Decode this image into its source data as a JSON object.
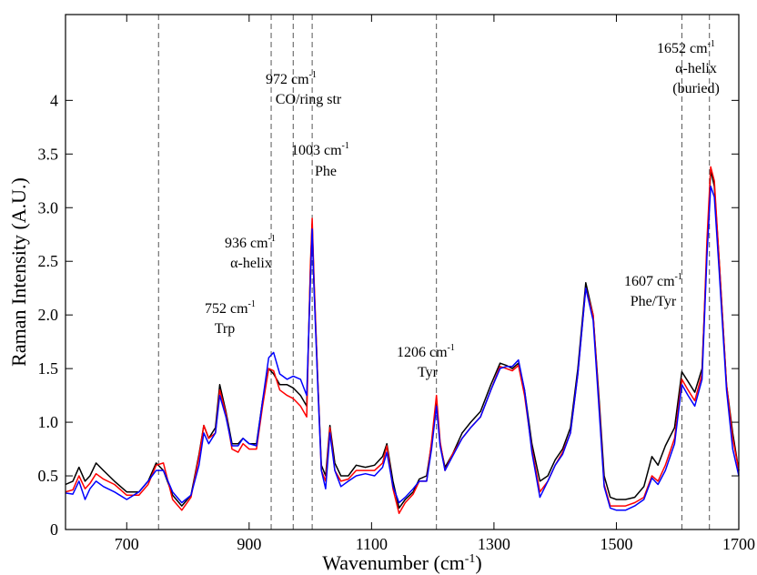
{
  "chart_data": {
    "type": "line",
    "title": "",
    "xlabel": "Wavenumber (cm-1)",
    "ylabel": "Raman Intensity (A.U.)",
    "xlim": [
      600,
      1700
    ],
    "ylim": [
      0,
      4.8
    ],
    "grid": false,
    "x_ticks": [
      "700",
      "900",
      "1100",
      "1300",
      "1500",
      "1700"
    ],
    "y_ticks": [
      "0",
      "0.5",
      "1.0",
      "1.5",
      "2.0",
      "2.5",
      "3.0",
      "3.5",
      "4"
    ],
    "series": [
      {
        "color": "#000000",
        "points": [
          [
            600,
            0.42
          ],
          [
            612,
            0.45
          ],
          [
            622,
            0.58
          ],
          [
            632,
            0.45
          ],
          [
            640,
            0.5
          ],
          [
            650,
            0.62
          ],
          [
            662,
            0.55
          ],
          [
            680,
            0.45
          ],
          [
            700,
            0.35
          ],
          [
            720,
            0.35
          ],
          [
            735,
            0.45
          ],
          [
            748,
            0.62
          ],
          [
            760,
            0.55
          ],
          [
            775,
            0.32
          ],
          [
            790,
            0.22
          ],
          [
            805,
            0.32
          ],
          [
            818,
            0.7
          ],
          [
            826,
            0.97
          ],
          [
            834,
            0.85
          ],
          [
            845,
            0.95
          ],
          [
            852,
            1.35
          ],
          [
            862,
            1.1
          ],
          [
            872,
            0.8
          ],
          [
            882,
            0.8
          ],
          [
            890,
            0.85
          ],
          [
            900,
            0.8
          ],
          [
            912,
            0.8
          ],
          [
            922,
            1.2
          ],
          [
            932,
            1.5
          ],
          [
            940,
            1.45
          ],
          [
            950,
            1.35
          ],
          [
            962,
            1.35
          ],
          [
            972,
            1.32
          ],
          [
            984,
            1.25
          ],
          [
            994,
            1.15
          ],
          [
            1000,
            2.4
          ],
          [
            1003,
            2.85
          ],
          [
            1006,
            2.3
          ],
          [
            1012,
            1.4
          ],
          [
            1018,
            0.6
          ],
          [
            1025,
            0.5
          ],
          [
            1032,
            0.97
          ],
          [
            1040,
            0.62
          ],
          [
            1050,
            0.5
          ],
          [
            1062,
            0.5
          ],
          [
            1075,
            0.6
          ],
          [
            1090,
            0.58
          ],
          [
            1105,
            0.6
          ],
          [
            1118,
            0.68
          ],
          [
            1125,
            0.8
          ],
          [
            1135,
            0.45
          ],
          [
            1145,
            0.2
          ],
          [
            1155,
            0.28
          ],
          [
            1168,
            0.35
          ],
          [
            1178,
            0.47
          ],
          [
            1190,
            0.5
          ],
          [
            1198,
            0.8
          ],
          [
            1206,
            1.2
          ],
          [
            1212,
            0.8
          ],
          [
            1220,
            0.58
          ],
          [
            1232,
            0.7
          ],
          [
            1248,
            0.9
          ],
          [
            1262,
            1.0
          ],
          [
            1278,
            1.1
          ],
          [
            1295,
            1.35
          ],
          [
            1310,
            1.55
          ],
          [
            1320,
            1.53
          ],
          [
            1330,
            1.5
          ],
          [
            1340,
            1.55
          ],
          [
            1350,
            1.3
          ],
          [
            1362,
            0.8
          ],
          [
            1375,
            0.45
          ],
          [
            1388,
            0.5
          ],
          [
            1400,
            0.65
          ],
          [
            1412,
            0.75
          ],
          [
            1425,
            0.95
          ],
          [
            1437,
            1.5
          ],
          [
            1450,
            2.3
          ],
          [
            1462,
            2.0
          ],
          [
            1472,
            1.2
          ],
          [
            1480,
            0.5
          ],
          [
            1490,
            0.3
          ],
          [
            1500,
            0.28
          ],
          [
            1515,
            0.28
          ],
          [
            1530,
            0.3
          ],
          [
            1545,
            0.4
          ],
          [
            1558,
            0.68
          ],
          [
            1568,
            0.6
          ],
          [
            1580,
            0.78
          ],
          [
            1595,
            0.95
          ],
          [
            1607,
            1.47
          ],
          [
            1617,
            1.38
          ],
          [
            1628,
            1.28
          ],
          [
            1640,
            1.5
          ],
          [
            1648,
            2.6
          ],
          [
            1654,
            3.35
          ],
          [
            1660,
            3.2
          ],
          [
            1668,
            2.5
          ],
          [
            1680,
            1.35
          ],
          [
            1690,
            0.9
          ],
          [
            1700,
            0.55
          ]
        ]
      },
      {
        "color": "#ff0000",
        "points": [
          [
            600,
            0.35
          ],
          [
            612,
            0.37
          ],
          [
            622,
            0.5
          ],
          [
            632,
            0.38
          ],
          [
            640,
            0.43
          ],
          [
            650,
            0.52
          ],
          [
            662,
            0.47
          ],
          [
            680,
            0.42
          ],
          [
            700,
            0.32
          ],
          [
            720,
            0.32
          ],
          [
            735,
            0.42
          ],
          [
            748,
            0.6
          ],
          [
            760,
            0.62
          ],
          [
            775,
            0.28
          ],
          [
            790,
            0.18
          ],
          [
            805,
            0.3
          ],
          [
            818,
            0.68
          ],
          [
            826,
            0.97
          ],
          [
            834,
            0.85
          ],
          [
            845,
            0.9
          ],
          [
            852,
            1.3
          ],
          [
            862,
            1.08
          ],
          [
            872,
            0.75
          ],
          [
            882,
            0.72
          ],
          [
            890,
            0.8
          ],
          [
            900,
            0.75
          ],
          [
            912,
            0.75
          ],
          [
            922,
            1.15
          ],
          [
            932,
            1.5
          ],
          [
            940,
            1.48
          ],
          [
            950,
            1.3
          ],
          [
            962,
            1.25
          ],
          [
            972,
            1.22
          ],
          [
            984,
            1.15
          ],
          [
            994,
            1.05
          ],
          [
            1000,
            2.45
          ],
          [
            1003,
            2.9
          ],
          [
            1006,
            2.35
          ],
          [
            1012,
            1.4
          ],
          [
            1018,
            0.55
          ],
          [
            1025,
            0.45
          ],
          [
            1032,
            0.95
          ],
          [
            1040,
            0.55
          ],
          [
            1050,
            0.45
          ],
          [
            1062,
            0.47
          ],
          [
            1075,
            0.55
          ],
          [
            1090,
            0.55
          ],
          [
            1105,
            0.55
          ],
          [
            1118,
            0.62
          ],
          [
            1125,
            0.78
          ],
          [
            1135,
            0.38
          ],
          [
            1145,
            0.15
          ],
          [
            1155,
            0.25
          ],
          [
            1168,
            0.33
          ],
          [
            1178,
            0.45
          ],
          [
            1190,
            0.45
          ],
          [
            1198,
            0.82
          ],
          [
            1206,
            1.25
          ],
          [
            1212,
            0.82
          ],
          [
            1220,
            0.55
          ],
          [
            1232,
            0.7
          ],
          [
            1248,
            0.85
          ],
          [
            1262,
            0.95
          ],
          [
            1278,
            1.05
          ],
          [
            1295,
            1.3
          ],
          [
            1310,
            1.52
          ],
          [
            1320,
            1.5
          ],
          [
            1330,
            1.48
          ],
          [
            1340,
            1.53
          ],
          [
            1350,
            1.25
          ],
          [
            1362,
            0.75
          ],
          [
            1375,
            0.35
          ],
          [
            1388,
            0.45
          ],
          [
            1400,
            0.6
          ],
          [
            1412,
            0.72
          ],
          [
            1425,
            0.9
          ],
          [
            1437,
            1.45
          ],
          [
            1450,
            2.25
          ],
          [
            1462,
            2.0
          ],
          [
            1472,
            1.15
          ],
          [
            1480,
            0.42
          ],
          [
            1490,
            0.22
          ],
          [
            1500,
            0.22
          ],
          [
            1515,
            0.22
          ],
          [
            1530,
            0.25
          ],
          [
            1545,
            0.3
          ],
          [
            1558,
            0.5
          ],
          [
            1568,
            0.45
          ],
          [
            1580,
            0.6
          ],
          [
            1595,
            0.85
          ],
          [
            1607,
            1.4
          ],
          [
            1617,
            1.3
          ],
          [
            1628,
            1.2
          ],
          [
            1640,
            1.45
          ],
          [
            1648,
            2.7
          ],
          [
            1654,
            3.38
          ],
          [
            1660,
            3.25
          ],
          [
            1668,
            2.5
          ],
          [
            1680,
            1.35
          ],
          [
            1690,
            0.85
          ],
          [
            1700,
            0.55
          ]
        ]
      },
      {
        "color": "#0000ff",
        "points": [
          [
            600,
            0.34
          ],
          [
            612,
            0.33
          ],
          [
            622,
            0.45
          ],
          [
            632,
            0.28
          ],
          [
            640,
            0.38
          ],
          [
            650,
            0.45
          ],
          [
            662,
            0.4
          ],
          [
            680,
            0.35
          ],
          [
            700,
            0.28
          ],
          [
            720,
            0.35
          ],
          [
            735,
            0.45
          ],
          [
            748,
            0.55
          ],
          [
            760,
            0.55
          ],
          [
            775,
            0.35
          ],
          [
            790,
            0.25
          ],
          [
            805,
            0.32
          ],
          [
            818,
            0.6
          ],
          [
            826,
            0.9
          ],
          [
            834,
            0.8
          ],
          [
            845,
            0.9
          ],
          [
            852,
            1.25
          ],
          [
            862,
            1.05
          ],
          [
            872,
            0.78
          ],
          [
            882,
            0.78
          ],
          [
            890,
            0.85
          ],
          [
            900,
            0.8
          ],
          [
            912,
            0.78
          ],
          [
            922,
            1.2
          ],
          [
            932,
            1.6
          ],
          [
            940,
            1.65
          ],
          [
            950,
            1.45
          ],
          [
            962,
            1.4
          ],
          [
            972,
            1.43
          ],
          [
            984,
            1.4
          ],
          [
            994,
            1.25
          ],
          [
            1000,
            2.3
          ],
          [
            1003,
            2.8
          ],
          [
            1006,
            2.25
          ],
          [
            1012,
            1.35
          ],
          [
            1018,
            0.55
          ],
          [
            1025,
            0.38
          ],
          [
            1032,
            0.9
          ],
          [
            1040,
            0.55
          ],
          [
            1050,
            0.4
          ],
          [
            1062,
            0.45
          ],
          [
            1075,
            0.5
          ],
          [
            1090,
            0.52
          ],
          [
            1105,
            0.5
          ],
          [
            1118,
            0.58
          ],
          [
            1125,
            0.72
          ],
          [
            1135,
            0.4
          ],
          [
            1145,
            0.25
          ],
          [
            1155,
            0.3
          ],
          [
            1168,
            0.38
          ],
          [
            1178,
            0.45
          ],
          [
            1190,
            0.45
          ],
          [
            1198,
            0.75
          ],
          [
            1206,
            1.15
          ],
          [
            1212,
            0.78
          ],
          [
            1220,
            0.55
          ],
          [
            1232,
            0.68
          ],
          [
            1248,
            0.85
          ],
          [
            1262,
            0.95
          ],
          [
            1278,
            1.05
          ],
          [
            1295,
            1.3
          ],
          [
            1310,
            1.5
          ],
          [
            1320,
            1.52
          ],
          [
            1330,
            1.52
          ],
          [
            1340,
            1.58
          ],
          [
            1350,
            1.3
          ],
          [
            1362,
            0.72
          ],
          [
            1375,
            0.3
          ],
          [
            1388,
            0.45
          ],
          [
            1400,
            0.6
          ],
          [
            1412,
            0.7
          ],
          [
            1425,
            0.9
          ],
          [
            1437,
            1.45
          ],
          [
            1450,
            2.25
          ],
          [
            1462,
            1.95
          ],
          [
            1472,
            1.1
          ],
          [
            1480,
            0.4
          ],
          [
            1490,
            0.2
          ],
          [
            1500,
            0.18
          ],
          [
            1515,
            0.18
          ],
          [
            1530,
            0.22
          ],
          [
            1545,
            0.28
          ],
          [
            1558,
            0.48
          ],
          [
            1568,
            0.42
          ],
          [
            1580,
            0.55
          ],
          [
            1595,
            0.8
          ],
          [
            1607,
            1.35
          ],
          [
            1617,
            1.25
          ],
          [
            1628,
            1.15
          ],
          [
            1640,
            1.4
          ],
          [
            1648,
            2.55
          ],
          [
            1654,
            3.2
          ],
          [
            1660,
            3.1
          ],
          [
            1668,
            2.4
          ],
          [
            1680,
            1.3
          ],
          [
            1690,
            0.75
          ],
          [
            1700,
            0.5
          ]
        ]
      }
    ],
    "annotations": [
      {
        "x": 752,
        "wavenumber": "752 cm",
        "sup": "-1",
        "label": "Trp"
      },
      {
        "x": 936,
        "wavenumber": "936 cm",
        "sup": "-1",
        "label": "α-helix"
      },
      {
        "x": 972,
        "wavenumber": "972 cm",
        "sup": "-1",
        "label": "CO/ring str"
      },
      {
        "x": 1003,
        "wavenumber": "1003 cm",
        "sup": "-1",
        "label": "Phe"
      },
      {
        "x": 1206,
        "wavenumber": "1206 cm",
        "sup": "-1",
        "label": "Tyr"
      },
      {
        "x": 1607,
        "wavenumber": "1607 cm",
        "sup": "-1",
        "label": "Phe/Tyr"
      },
      {
        "x": 1652,
        "wavenumber": "1652 cm",
        "sup": "-1",
        "label": "α-helix",
        "label2": "(buried)"
      }
    ]
  }
}
